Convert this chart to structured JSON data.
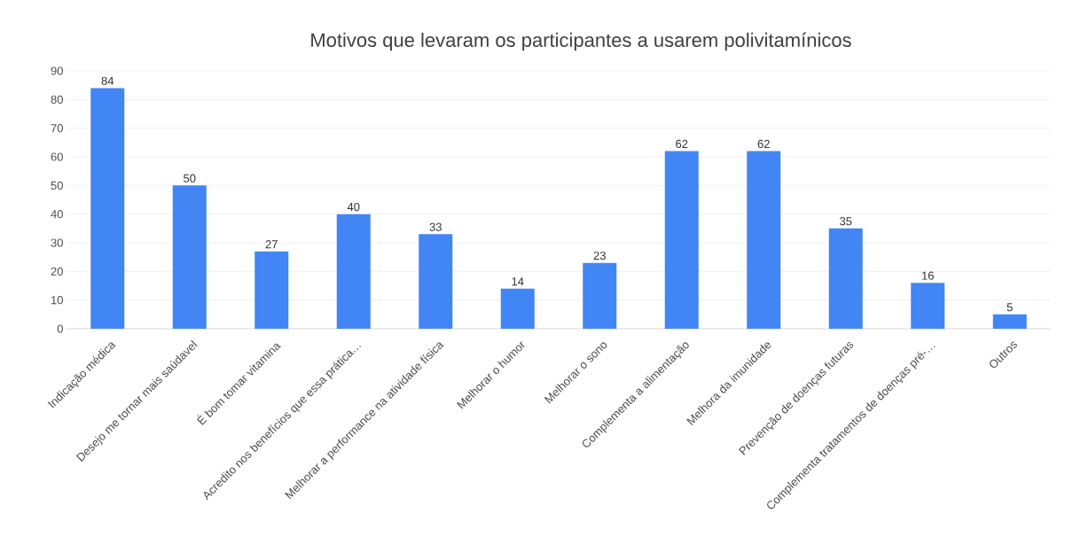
{
  "chart_data": {
    "type": "bar",
    "title": "Motivos que levaram os participantes a usarem polivitamínicos",
    "categories": [
      "Indicação médica",
      "Desejo me tornar mais saúdavel",
      "É bom tomar vitamina",
      "Acredito nos benefícios que essa prática…",
      "Melhorar a performance na atividade física",
      "Melhorar o humor",
      "Melhorar o sono",
      "Complementa a alimentação",
      "Melhora da imunidade",
      "Prevenção de doenças futuras",
      "Complementa tratamentos de doenças pré-…",
      "Outros"
    ],
    "values": [
      84,
      50,
      27,
      40,
      33,
      14,
      23,
      62,
      62,
      35,
      16,
      5
    ],
    "color": "#4285f4",
    "ylim": [
      0,
      90
    ],
    "yticks": [
      0,
      10,
      20,
      30,
      40,
      50,
      60,
      70,
      80,
      90
    ],
    "grid": "y",
    "data_labels": true
  }
}
